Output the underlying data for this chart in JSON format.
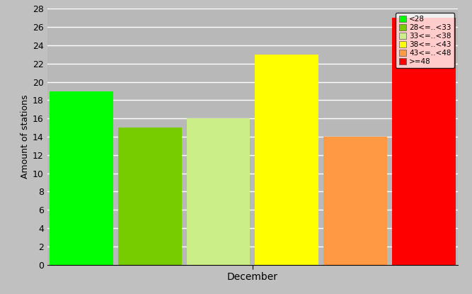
{
  "categories": [
    "<28",
    "28<=..<33",
    "33<=..<38",
    "38<=..<43",
    "43<=..<48",
    ">=48"
  ],
  "values": [
    19,
    15,
    16,
    23,
    14,
    27
  ],
  "bar_colors": [
    "#00ff00",
    "#77cc00",
    "#ccee88",
    "#ffff00",
    "#ff9944",
    "#ff0000"
  ],
  "xlabel": "December",
  "ylabel": "Amount of stations",
  "ylim": [
    0,
    28
  ],
  "yticks": [
    0,
    2,
    4,
    6,
    8,
    10,
    12,
    14,
    16,
    18,
    20,
    22,
    24,
    26,
    28
  ],
  "background_color": "#c0c0c0",
  "plot_bg_color": "#b8b8b8",
  "legend_labels": [
    "<28",
    "28<=..<33",
    "33<=..<38",
    "38<=..<43",
    "43<=..<48",
    ">=48"
  ],
  "legend_colors": [
    "#00ff00",
    "#77cc00",
    "#ccee88",
    "#ffff00",
    "#ff9944",
    "#ff0000"
  ],
  "bar_width": 0.93,
  "bar_positions": [
    1,
    2,
    3,
    4,
    5,
    6
  ]
}
